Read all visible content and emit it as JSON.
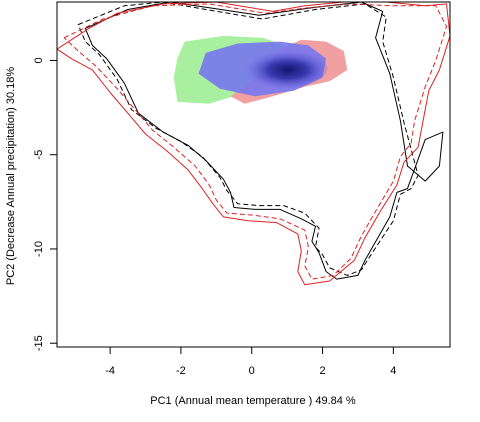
{
  "chart_data": {
    "type": "heatmap-contour",
    "title": "",
    "xlabel": "PC1 (Annual mean temperature ) 49.84 %",
    "ylabel": "PC2 (Decrease Annual precipitation) 30.18%",
    "xlim": [
      -5.5,
      5.6
    ],
    "ylim": [
      -15.2,
      3.1
    ],
    "x_ticks": [
      -4,
      -2,
      0,
      2,
      4
    ],
    "y_ticks": [
      0,
      -5,
      -10,
      -15
    ],
    "grid": false,
    "legend": "none",
    "colors": {
      "native_density": "#7777ee",
      "native_core": "#1a1a8a",
      "green_only": "#a8f0a0",
      "red_only": "#f0a0a0",
      "contour_black": "#000000",
      "contour_red": "#dd2222"
    },
    "density_blobs": [
      {
        "name": "green",
        "points": [
          [
            -1.9,
            1.0
          ],
          [
            -0.8,
            1.3
          ],
          [
            0.3,
            1.2
          ],
          [
            0.8,
            0.9
          ],
          [
            1.1,
            0.4
          ],
          [
            0.8,
            -0.7
          ],
          [
            0.0,
            -1.6
          ],
          [
            -1.2,
            -2.3
          ],
          [
            -2.1,
            -2.2
          ],
          [
            -2.2,
            -0.9
          ],
          [
            -2.1,
            0.1
          ]
        ]
      },
      {
        "name": "red",
        "points": [
          [
            -0.6,
            -1.9
          ],
          [
            0.2,
            -0.8
          ],
          [
            0.8,
            0.6
          ],
          [
            1.4,
            1.1
          ],
          [
            2.1,
            1.0
          ],
          [
            2.6,
            0.5
          ],
          [
            2.7,
            -0.5
          ],
          [
            2.2,
            -1.1
          ],
          [
            1.5,
            -1.4
          ],
          [
            0.6,
            -1.9
          ],
          [
            -0.2,
            -2.3
          ]
        ]
      },
      {
        "name": "blue",
        "points": [
          [
            -1.3,
            0.4
          ],
          [
            -0.4,
            0.9
          ],
          [
            0.8,
            1.0
          ],
          [
            1.6,
            0.8
          ],
          [
            2.1,
            0.1
          ],
          [
            2.0,
            -0.9
          ],
          [
            1.2,
            -1.6
          ],
          [
            0.1,
            -1.9
          ],
          [
            -0.9,
            -1.5
          ],
          [
            -1.5,
            -0.7
          ]
        ]
      }
    ],
    "contours": [
      {
        "name": "black-solid",
        "points": [
          [
            -4.7,
            1.7
          ],
          [
            -3.5,
            2.7
          ],
          [
            -2.3,
            3.1
          ],
          [
            -1.2,
            2.8
          ],
          [
            0.2,
            2.4
          ],
          [
            1.7,
            2.8
          ],
          [
            3.1,
            3.1
          ],
          [
            3.7,
            2.6
          ],
          [
            3.5,
            1.2
          ],
          [
            3.9,
            -0.7
          ],
          [
            4.2,
            -3.2
          ],
          [
            4.4,
            -5.6
          ],
          [
            4.9,
            -6.4
          ],
          [
            5.3,
            -5.6
          ],
          [
            5.4,
            -3.8
          ],
          [
            4.9,
            -4.2
          ],
          [
            4.4,
            -6.8
          ],
          [
            4.1,
            -7.0
          ],
          [
            3.9,
            -8.3
          ],
          [
            3.2,
            -10.6
          ],
          [
            3.0,
            -11.4
          ],
          [
            2.4,
            -11.6
          ],
          [
            2.1,
            -11.2
          ],
          [
            1.9,
            -10.2
          ],
          [
            1.7,
            -9.6
          ],
          [
            1.8,
            -8.8
          ],
          [
            1.4,
            -8.4
          ],
          [
            0.8,
            -7.9
          ],
          [
            0.1,
            -7.9
          ],
          [
            -0.5,
            -7.8
          ],
          [
            -0.6,
            -7.0
          ],
          [
            -0.8,
            -6.3
          ],
          [
            -1.3,
            -5.3
          ],
          [
            -1.8,
            -4.5
          ],
          [
            -2.5,
            -3.8
          ],
          [
            -3.2,
            -2.8
          ],
          [
            -3.6,
            -1.2
          ],
          [
            -4.1,
            0.1
          ],
          [
            -4.5,
            0.8
          ]
        ]
      },
      {
        "name": "black-dashed",
        "points": [
          [
            -4.9,
            1.9
          ],
          [
            -3.6,
            2.9
          ],
          [
            -2.5,
            3.1
          ],
          [
            -1.3,
            2.7
          ],
          [
            0.3,
            2.2
          ],
          [
            1.8,
            2.7
          ],
          [
            3.2,
            3.0
          ],
          [
            3.8,
            2.3
          ],
          [
            3.7,
            1.0
          ],
          [
            4.0,
            -0.9
          ],
          [
            4.3,
            -3.3
          ],
          [
            4.6,
            -5.4
          ],
          [
            4.7,
            -6.1
          ],
          [
            4.5,
            -6.8
          ],
          [
            4.2,
            -7.1
          ],
          [
            4.0,
            -8.5
          ],
          [
            3.3,
            -10.5
          ],
          [
            3.1,
            -11.1
          ],
          [
            2.7,
            -11.4
          ],
          [
            2.2,
            -11.0
          ],
          [
            2.0,
            -10.3
          ],
          [
            1.8,
            -9.9
          ],
          [
            1.9,
            -8.9
          ],
          [
            1.5,
            -8.1
          ],
          [
            0.9,
            -7.7
          ],
          [
            0.2,
            -7.7
          ],
          [
            -0.4,
            -7.6
          ],
          [
            -0.7,
            -6.9
          ],
          [
            -0.9,
            -6.2
          ],
          [
            -1.4,
            -5.1
          ],
          [
            -2.0,
            -4.3
          ],
          [
            -2.7,
            -3.6
          ],
          [
            -3.4,
            -2.6
          ],
          [
            -3.8,
            -1.0
          ],
          [
            -4.3,
            0.3
          ],
          [
            -4.7,
            1.0
          ]
        ]
      },
      {
        "name": "red-solid",
        "points": [
          [
            -5.5,
            0.6
          ],
          [
            -4.6,
            1.7
          ],
          [
            -3.8,
            2.5
          ],
          [
            -2.5,
            3.0
          ],
          [
            -1.0,
            3.1
          ],
          [
            0.6,
            2.6
          ],
          [
            1.5,
            2.9
          ],
          [
            2.6,
            3.1
          ],
          [
            3.8,
            3.1
          ],
          [
            4.9,
            2.9
          ],
          [
            5.5,
            3.0
          ],
          [
            5.6,
            1.3
          ],
          [
            5.3,
            -0.5
          ],
          [
            5.0,
            -1.6
          ],
          [
            4.7,
            -4.6
          ],
          [
            4.3,
            -5.4
          ],
          [
            4.1,
            -6.6
          ],
          [
            3.6,
            -8.1
          ],
          [
            3.2,
            -9.4
          ],
          [
            2.9,
            -10.6
          ],
          [
            2.2,
            -11.7
          ],
          [
            1.5,
            -11.9
          ],
          [
            1.3,
            -11.2
          ],
          [
            1.4,
            -10.1
          ],
          [
            1.3,
            -9.2
          ],
          [
            0.7,
            -8.6
          ],
          [
            -0.1,
            -8.5
          ],
          [
            -0.8,
            -8.3
          ],
          [
            -1.1,
            -7.6
          ],
          [
            -1.4,
            -6.8
          ],
          [
            -1.8,
            -5.8
          ],
          [
            -2.4,
            -4.8
          ],
          [
            -3.0,
            -3.9
          ],
          [
            -3.5,
            -2.8
          ],
          [
            -4.0,
            -1.7
          ],
          [
            -4.5,
            -0.5
          ],
          [
            -5.1,
            0.1
          ]
        ]
      },
      {
        "name": "red-dashed",
        "points": [
          [
            -5.3,
            1.2
          ],
          [
            -4.2,
            2.2
          ],
          [
            -2.8,
            2.9
          ],
          [
            -1.2,
            3.0
          ],
          [
            0.4,
            2.5
          ],
          [
            1.6,
            2.8
          ],
          [
            2.8,
            3.0
          ],
          [
            3.9,
            2.9
          ],
          [
            5.2,
            2.9
          ],
          [
            5.5,
            1.8
          ],
          [
            5.2,
            0.0
          ],
          [
            4.9,
            -1.4
          ],
          [
            4.6,
            -3.2
          ],
          [
            4.5,
            -4.4
          ],
          [
            4.2,
            -5.1
          ],
          [
            4.0,
            -6.4
          ],
          [
            3.5,
            -8.0
          ],
          [
            3.1,
            -9.3
          ],
          [
            2.8,
            -10.5
          ],
          [
            2.3,
            -11.4
          ],
          [
            1.7,
            -11.6
          ],
          [
            1.5,
            -10.9
          ],
          [
            1.6,
            -9.9
          ],
          [
            1.5,
            -9.0
          ],
          [
            0.8,
            -8.4
          ],
          [
            0.0,
            -8.2
          ],
          [
            -0.7,
            -8.1
          ],
          [
            -1.0,
            -7.4
          ],
          [
            -1.2,
            -6.6
          ],
          [
            -1.6,
            -5.6
          ],
          [
            -2.2,
            -4.6
          ],
          [
            -2.8,
            -3.7
          ],
          [
            -3.3,
            -2.6
          ],
          [
            -3.8,
            -1.5
          ],
          [
            -4.4,
            -0.3
          ],
          [
            -4.9,
            0.5
          ]
        ]
      }
    ]
  }
}
